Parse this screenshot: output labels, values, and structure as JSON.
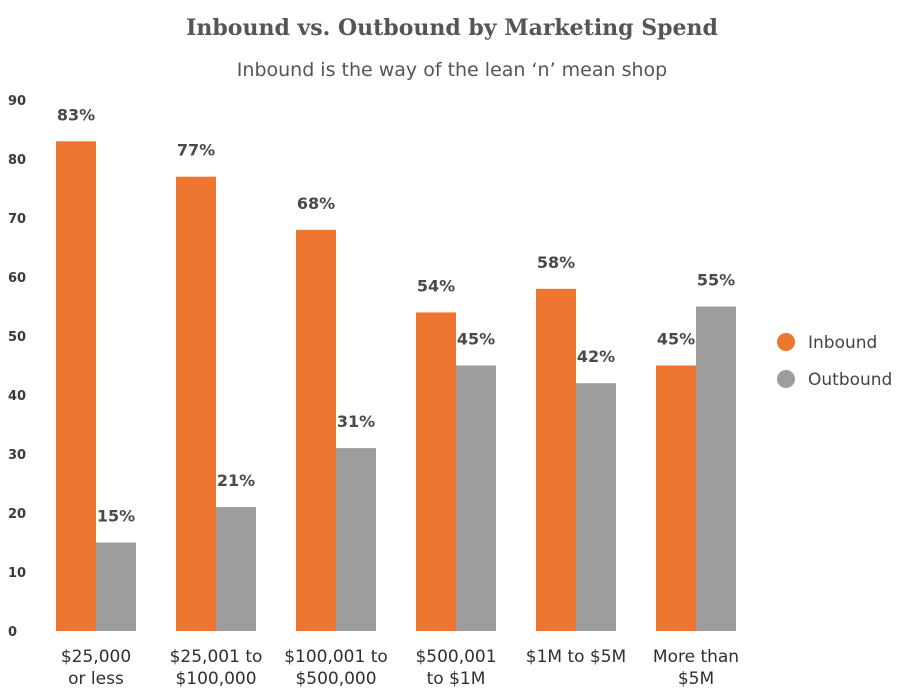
{
  "chart_data": {
    "type": "bar",
    "title": "Inbound vs. Outbound by Marketing Spend",
    "subtitle": "Inbound is the way of the lean ‘n’ mean shop",
    "categories": [
      [
        "$25,000",
        "or less"
      ],
      [
        "$25,001 to",
        "$100,000"
      ],
      [
        "$100,001 to",
        "$500,000"
      ],
      [
        "$500,001",
        "to $1M"
      ],
      [
        "$1M to $5M"
      ],
      [
        "More than",
        "$5M"
      ]
    ],
    "series": [
      {
        "name": "Inbound",
        "color": "#ED7731",
        "values": [
          83,
          77,
          68,
          54,
          58,
          45
        ],
        "labels": [
          "83%",
          "77%",
          "68%",
          "54%",
          "58%",
          "45%"
        ]
      },
      {
        "name": "Outbound",
        "color": "#9D9D9D",
        "values": [
          15,
          21,
          31,
          45,
          42,
          55
        ],
        "labels": [
          "15%",
          "21%",
          "31%",
          "45%",
          "42%",
          "55%"
        ]
      }
    ],
    "ylim": [
      0,
      90
    ],
    "yticks": [
      "0",
      "10",
      "20",
      "30",
      "40",
      "50",
      "60",
      "70",
      "80",
      "90"
    ],
    "xlabel": "",
    "ylabel": "",
    "grid": false,
    "legend_position": "right"
  }
}
